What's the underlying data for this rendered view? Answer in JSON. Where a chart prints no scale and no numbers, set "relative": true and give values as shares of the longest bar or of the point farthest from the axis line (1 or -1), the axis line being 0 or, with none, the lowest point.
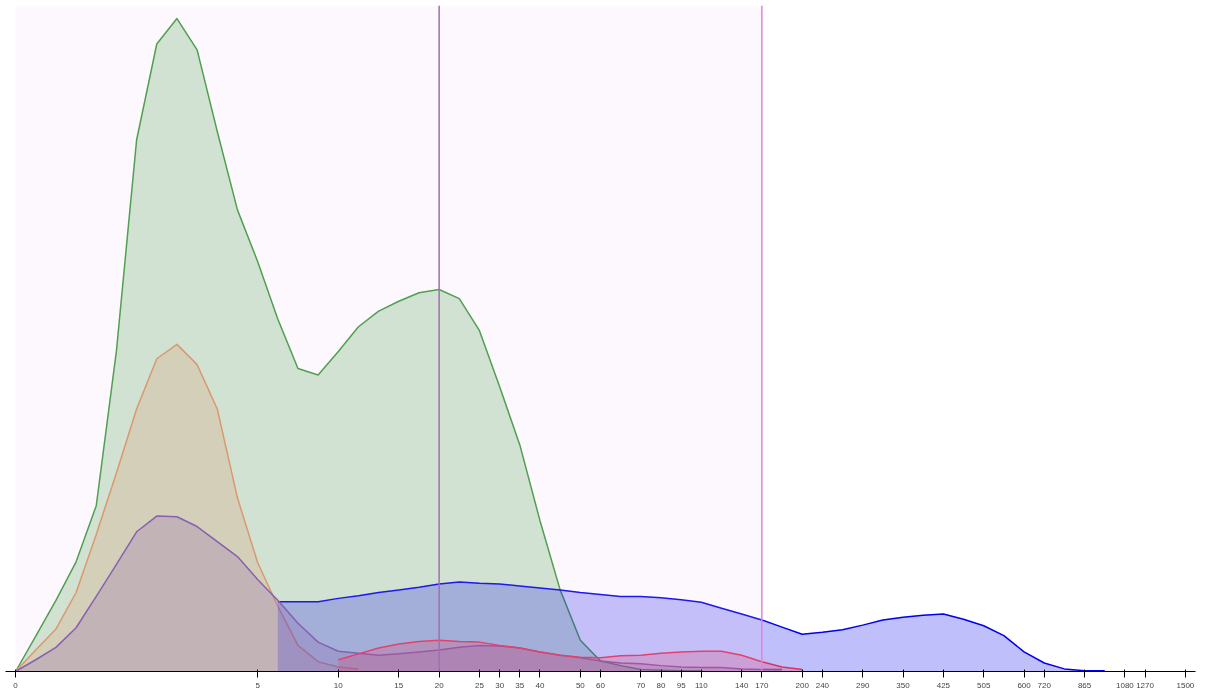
{
  "chart_data": {
    "type": "area",
    "relative": true,
    "grid": false,
    "categories": [
      "0",
      null,
      null,
      null,
      null,
      null,
      null,
      null,
      null,
      null,
      null,
      null,
      "5",
      null,
      null,
      null,
      "10",
      null,
      null,
      "15",
      null,
      "20",
      null,
      "25",
      "30",
      "35",
      "40",
      null,
      "50",
      "60",
      null,
      "70",
      "80",
      "95",
      "110",
      null,
      "140",
      "170",
      null,
      "200",
      "240",
      null,
      "290",
      null,
      "350",
      null,
      "425",
      null,
      "505",
      null,
      "600",
      "720",
      null,
      "865",
      null,
      "1080",
      "1270",
      null,
      "1500"
    ],
    "series": [
      {
        "color": "#3c9a3c",
        "values": [
          0,
          0.054,
          0.109,
          0.168,
          0.254,
          0.491,
          0.814,
          0.961,
          1.0,
          0.952,
          0.827,
          0.707,
          0.628,
          0.54,
          0.464,
          0.454,
          0.49,
          0.528,
          0.552,
          0.567,
          0.58,
          0.585,
          0.571,
          0.522,
          0.436,
          0.347,
          0.231,
          0.125,
          0.048,
          0.016,
          0.009,
          0.003,
          0.002,
          0.001,
          0.001,
          null,
          null,
          null,
          null,
          null,
          null,
          null,
          null,
          null,
          null,
          null,
          null,
          null,
          null,
          null,
          null,
          null,
          null,
          null,
          null,
          null,
          null,
          null,
          null
        ]
      },
      {
        "color": "#d9925e",
        "values": [
          0,
          0.033,
          0.065,
          0.121,
          0.21,
          0.304,
          0.402,
          0.479,
          0.501,
          0.47,
          0.402,
          0.266,
          0.167,
          0.1,
          0.04,
          0.015,
          0.007,
          0.004,
          null,
          null,
          null,
          null,
          null,
          null,
          null,
          null,
          null,
          null,
          null,
          null,
          null,
          null,
          null,
          null,
          null,
          null,
          null,
          null,
          null,
          null,
          null,
          null,
          null,
          null,
          null,
          null,
          null,
          null,
          null,
          null,
          null,
          null,
          null,
          null,
          null,
          null,
          null,
          null,
          null
        ]
      },
      {
        "color": "#0000ee",
        "values": [
          null,
          null,
          null,
          null,
          null,
          null,
          null,
          null,
          null,
          null,
          null,
          null,
          null,
          0.107,
          0.107,
          0.107,
          0.112,
          0.116,
          0.121,
          0.125,
          0.129,
          0.134,
          0.137,
          0.135,
          0.134,
          0.131,
          0.128,
          0.125,
          0.121,
          0.118,
          0.115,
          0.115,
          0.113,
          0.11,
          0.106,
          0.097,
          0.088,
          0.079,
          0.068,
          0.057,
          0.06,
          0.064,
          0.071,
          0.079,
          0.083,
          0.086,
          0.088,
          0.08,
          0.07,
          0.055,
          0.03,
          0.013,
          0.004,
          0.001,
          0.001,
          null,
          null,
          null,
          null
        ]
      },
      {
        "color": "#7a52a8",
        "values": [
          0,
          0.018,
          0.037,
          0.067,
          0.115,
          0.164,
          0.214,
          0.238,
          0.237,
          0.222,
          0.199,
          0.176,
          0.141,
          0.109,
          0.074,
          0.045,
          0.031,
          0.028,
          0.025,
          0.027,
          0.03,
          0.033,
          0.037,
          0.04,
          0.039,
          0.036,
          0.03,
          0.025,
          0.021,
          0.016,
          0.013,
          0.012,
          0.009,
          0.007,
          0.006,
          0.006,
          0.004,
          0.003,
          0.003,
          null,
          null,
          null,
          null,
          null,
          null,
          null,
          null,
          null,
          null,
          null,
          null,
          null,
          null,
          null,
          null,
          null,
          null,
          null,
          null
        ]
      },
      {
        "color": "#e0305a",
        "values": [
          null,
          null,
          null,
          null,
          null,
          null,
          null,
          null,
          null,
          null,
          null,
          null,
          null,
          null,
          null,
          null,
          0.018,
          0.027,
          0.036,
          0.042,
          0.046,
          0.048,
          0.046,
          0.045,
          0.04,
          0.036,
          0.03,
          0.025,
          0.022,
          0.021,
          0.024,
          0.025,
          0.028,
          0.03,
          0.031,
          0.031,
          0.025,
          0.015,
          0.007,
          0.003,
          null,
          null,
          null,
          null,
          null,
          null,
          null,
          null,
          null,
          null,
          null,
          null,
          null,
          null,
          null,
          null,
          null,
          null,
          null
        ]
      }
    ],
    "ref_lines": [
      {
        "axis": "x",
        "value": "20",
        "color": "#a070b0"
      },
      {
        "axis": "x",
        "value": "170",
        "color": "#e080e0"
      }
    ],
    "bands": [
      {
        "axis": "x",
        "from": "0",
        "to": "170",
        "color": "#f0c4f0"
      }
    ]
  }
}
